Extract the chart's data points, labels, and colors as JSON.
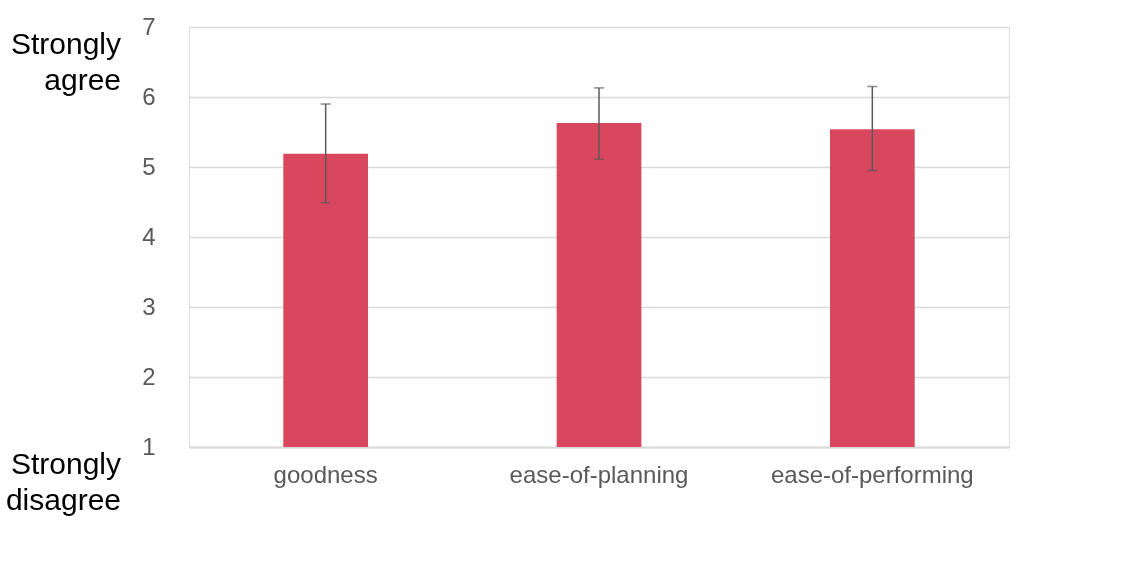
{
  "chart_data": {
    "type": "bar",
    "categories": [
      "goodness",
      "ease-of-planning",
      "ease-of-performing"
    ],
    "values": [
      5.19,
      5.63,
      5.54
    ],
    "color": "#d9475f",
    "errors": [
      [
        4.49,
        5.9
      ],
      [
        5.11,
        6.13
      ],
      [
        4.95,
        6.15
      ]
    ],
    "ylim": [
      1,
      7
    ],
    "yticks": [
      1,
      2,
      3,
      4,
      5,
      6,
      7
    ],
    "grid": "y",
    "annotations": [
      "Strongly agree",
      "Strongly disagree"
    ]
  }
}
